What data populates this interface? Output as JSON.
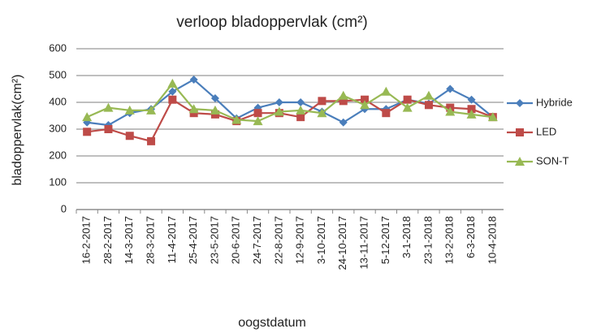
{
  "chart_data": {
    "type": "line",
    "title": "verloop bladoppervlak (cm²)",
    "x_label": "oogstdatum",
    "y_label": "bladoppervlak(cm²)",
    "categories": [
      "16-2-2017",
      "28-2-2017",
      "14-3-2017",
      "28-3-2017",
      "11-4-2017",
      "25-4-2017",
      "23-5-2017",
      "20-6-2017",
      "24-7-2017",
      "22-8-2017",
      "12-9-2017",
      "3-10-2017",
      "24-10-2017",
      "13-11-2017",
      "5-12-2017",
      "3-1-2018",
      "23-1-2018",
      "13-2-2018",
      "6-3-2018",
      "10-4-2018"
    ],
    "series": [
      {
        "name": "Hybride",
        "color": "#4a7ebb",
        "marker": "diamond",
        "values": [
          325,
          315,
          360,
          375,
          440,
          485,
          415,
          340,
          380,
          400,
          400,
          365,
          325,
          375,
          375,
          410,
          395,
          450,
          410,
          345
        ]
      },
      {
        "name": "LED",
        "color": "#be4b48",
        "marker": "square",
        "values": [
          290,
          300,
          275,
          255,
          410,
          360,
          355,
          330,
          360,
          360,
          345,
          405,
          405,
          410,
          360,
          410,
          390,
          380,
          375,
          345
        ]
      },
      {
        "name": "SON-T",
        "color": "#98b954",
        "marker": "triangle",
        "values": [
          345,
          380,
          370,
          370,
          470,
          375,
          370,
          335,
          330,
          365,
          370,
          360,
          425,
          390,
          440,
          380,
          425,
          365,
          355,
          345
        ]
      }
    ],
    "ylim": [
      0,
      600
    ],
    "yticks": [
      0,
      100,
      200,
      300,
      400,
      500,
      600
    ],
    "grid": true,
    "legend": "right"
  }
}
